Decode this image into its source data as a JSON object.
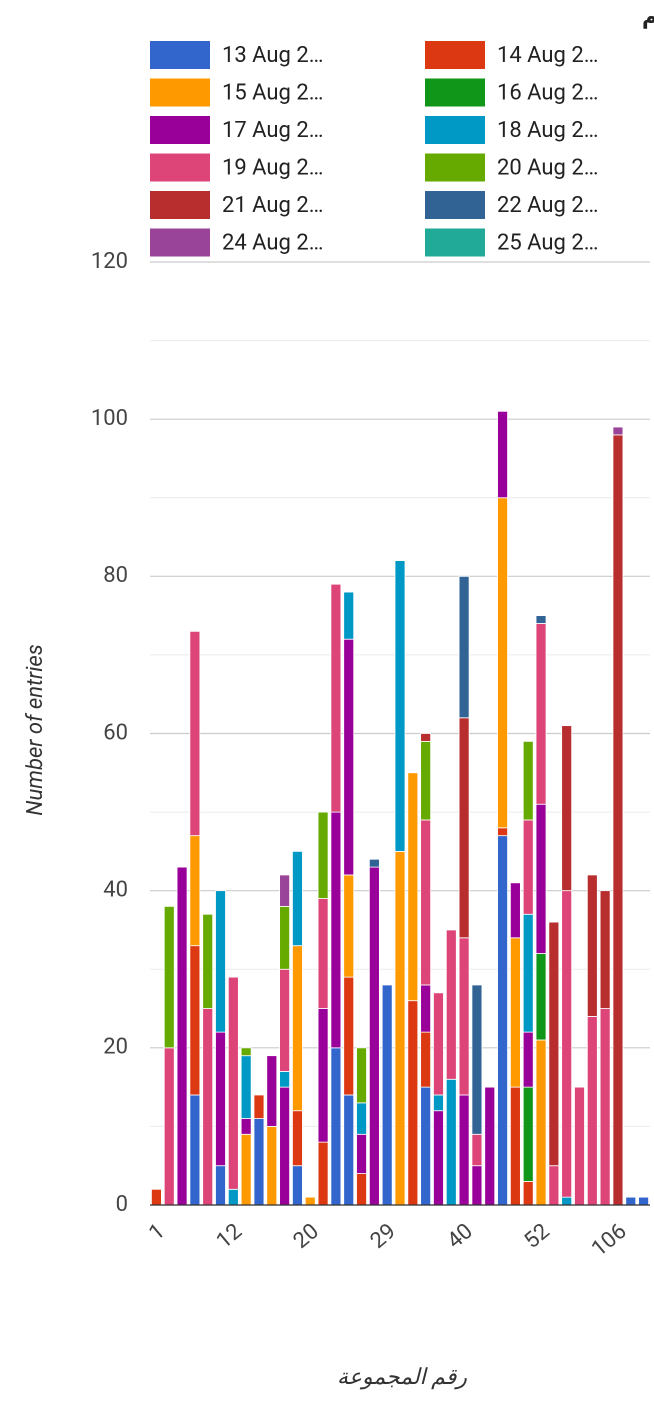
{
  "chart_data": {
    "type": "stacked-bar",
    "title": "عدد الكشوفات بحسب المجموعة واليوم",
    "y_label": "Number of entries",
    "x_label": "رقم المجموعة",
    "categories": [
      "1",
      null,
      null,
      null,
      null,
      null,
      "12",
      null,
      null,
      null,
      null,
      null,
      "20",
      null,
      null,
      null,
      null,
      null,
      "29",
      null,
      null,
      null,
      null,
      null,
      "40",
      null,
      null,
      null,
      null,
      null,
      "52",
      null,
      null,
      null,
      null,
      null,
      "106",
      null,
      null
    ],
    "ylim": [
      0,
      120
    ],
    "yticks": [
      0,
      20,
      40,
      60,
      80,
      100,
      120
    ],
    "minor_yticks": [
      10,
      30,
      50,
      70,
      90,
      110
    ],
    "grid": true,
    "legend": "top",
    "series": [
      {
        "name": "13 Aug 2…",
        "color": "#3366cc",
        "values": [
          null,
          null,
          null,
          14,
          null,
          5,
          null,
          null,
          11,
          null,
          null,
          5,
          null,
          null,
          20,
          14,
          null,
          null,
          28,
          null,
          null,
          15,
          null,
          null,
          null,
          null,
          null,
          47,
          null,
          null,
          null,
          null,
          null,
          null,
          null,
          null,
          null,
          1,
          1
        ]
      },
      {
        "name": "14 Aug 2…",
        "color": "#dc3912",
        "values": [
          2,
          null,
          null,
          19,
          null,
          null,
          null,
          null,
          3,
          null,
          null,
          7,
          null,
          8,
          null,
          15,
          4,
          null,
          null,
          null,
          26,
          7,
          null,
          null,
          null,
          null,
          null,
          1,
          15,
          3,
          null,
          null,
          null,
          null,
          null,
          null,
          null,
          null,
          null
        ]
      },
      {
        "name": "15 Aug 2…",
        "color": "#ff9900",
        "values": [
          null,
          null,
          null,
          14,
          null,
          null,
          null,
          9,
          null,
          10,
          null,
          21,
          1,
          null,
          null,
          13,
          null,
          null,
          null,
          45,
          29,
          null,
          null,
          null,
          null,
          null,
          null,
          42,
          19,
          null,
          21,
          null,
          null,
          null,
          null,
          null,
          null,
          null,
          null
        ]
      },
      {
        "name": "16 Aug 2…",
        "color": "#109618",
        "values": [
          null,
          null,
          null,
          null,
          null,
          null,
          null,
          null,
          null,
          null,
          null,
          null,
          null,
          null,
          null,
          null,
          null,
          null,
          null,
          null,
          null,
          null,
          null,
          null,
          null,
          null,
          null,
          null,
          null,
          12,
          11,
          null,
          null,
          null,
          null,
          null,
          null,
          null,
          null
        ]
      },
      {
        "name": "17 Aug 2…",
        "color": "#990099",
        "values": [
          null,
          null,
          43,
          null,
          null,
          17,
          null,
          2,
          null,
          9,
          15,
          null,
          null,
          17,
          30,
          30,
          5,
          43,
          null,
          null,
          null,
          6,
          12,
          null,
          14,
          5,
          15,
          11,
          7,
          7,
          19,
          null,
          null,
          null,
          null,
          null,
          null,
          null,
          null
        ]
      },
      {
        "name": "18 Aug 2…",
        "color": "#0099c6",
        "values": [
          null,
          null,
          null,
          null,
          null,
          18,
          2,
          8,
          null,
          null,
          2,
          12,
          null,
          null,
          null,
          6,
          4,
          null,
          null,
          37,
          null,
          null,
          2,
          16,
          null,
          null,
          null,
          null,
          null,
          15,
          null,
          null,
          1,
          null,
          null,
          null,
          null,
          null,
          null
        ]
      },
      {
        "name": "19 Aug 2…",
        "color": "#dd4477",
        "values": [
          null,
          20,
          null,
          26,
          25,
          null,
          27,
          null,
          null,
          null,
          13,
          null,
          null,
          14,
          29,
          null,
          null,
          null,
          null,
          null,
          null,
          21,
          13,
          19,
          20,
          4,
          null,
          null,
          null,
          12,
          23,
          5,
          39,
          15,
          24,
          25,
          null,
          null,
          null
        ]
      },
      {
        "name": "20 Aug 2…",
        "color": "#66aa00",
        "values": [
          null,
          18,
          null,
          null,
          12,
          null,
          null,
          1,
          null,
          null,
          8,
          null,
          null,
          11,
          null,
          null,
          7,
          null,
          null,
          null,
          null,
          10,
          null,
          null,
          null,
          null,
          null,
          null,
          null,
          10,
          null,
          null,
          null,
          null,
          null,
          null,
          null,
          null,
          null
        ]
      },
      {
        "name": "21 Aug 2…",
        "color": "#b82e2e",
        "values": [
          null,
          null,
          null,
          null,
          null,
          null,
          null,
          null,
          null,
          null,
          null,
          null,
          null,
          null,
          null,
          null,
          null,
          null,
          null,
          null,
          null,
          1,
          null,
          null,
          28,
          null,
          null,
          null,
          null,
          null,
          null,
          31,
          21,
          null,
          18,
          15,
          98,
          null,
          null
        ]
      },
      {
        "name": "22 Aug 2…",
        "color": "#316395",
        "values": [
          null,
          null,
          null,
          null,
          null,
          null,
          null,
          null,
          null,
          null,
          null,
          null,
          null,
          null,
          null,
          null,
          null,
          1,
          null,
          null,
          null,
          null,
          null,
          null,
          18,
          19,
          null,
          null,
          null,
          null,
          1,
          null,
          null,
          null,
          null,
          null,
          null,
          null,
          null
        ]
      },
      {
        "name": "24 Aug 2…",
        "color": "#994499",
        "values": [
          null,
          null,
          null,
          null,
          null,
          null,
          null,
          null,
          null,
          null,
          4,
          null,
          null,
          null,
          null,
          null,
          null,
          null,
          null,
          null,
          null,
          null,
          null,
          null,
          null,
          null,
          null,
          null,
          null,
          null,
          null,
          null,
          null,
          null,
          null,
          null,
          1,
          null,
          null
        ]
      },
      {
        "name": "25 Aug 2…",
        "color": "#22aa99",
        "values": [
          null,
          null,
          null,
          null,
          null,
          null,
          null,
          null,
          null,
          null,
          null,
          null,
          null,
          null,
          null,
          null,
          null,
          null,
          null,
          null,
          null,
          null,
          null,
          null,
          null,
          null,
          null,
          null,
          null,
          null,
          null,
          null,
          null,
          null,
          null,
          null,
          null,
          null,
          null
        ]
      }
    ]
  }
}
